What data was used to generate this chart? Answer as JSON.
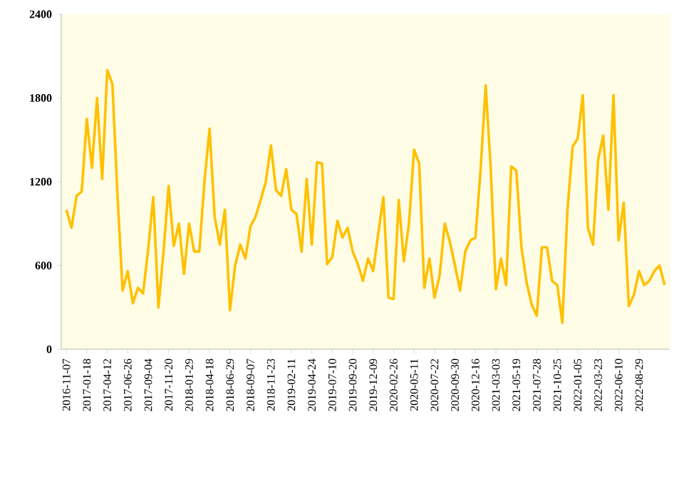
{
  "chart_data": {
    "type": "line",
    "categories": [
      "2016-11-07",
      null,
      null,
      null,
      "2017-01-18",
      null,
      null,
      null,
      "2017-04-12",
      null,
      null,
      null,
      "2017-06-26",
      null,
      null,
      null,
      "2017-09-04",
      null,
      null,
      null,
      "2017-11-20",
      null,
      null,
      null,
      "2018-01-29",
      null,
      null,
      null,
      "2018-04-18",
      null,
      null,
      null,
      "2018-06-29",
      null,
      null,
      null,
      "2018-09-07",
      null,
      null,
      null,
      "2018-11-23",
      null,
      null,
      null,
      "2019-02-11",
      null,
      null,
      null,
      "2019-04-24",
      null,
      null,
      null,
      "2019-07-10",
      null,
      null,
      null,
      "2019-09-20",
      null,
      null,
      null,
      "2019-12-09",
      null,
      null,
      null,
      "2020-02-26",
      null,
      null,
      null,
      "2020-05-11",
      null,
      null,
      null,
      "2020-07-22",
      null,
      null,
      null,
      "2020-09-30",
      null,
      null,
      null,
      "2020-12-16",
      null,
      null,
      null,
      "2021-03-03",
      null,
      null,
      null,
      "2021-05-19",
      null,
      null,
      null,
      "2021-07-28",
      null,
      null,
      null,
      "2021-10-25",
      null,
      null,
      null,
      "2022-01-05",
      null,
      null,
      null,
      "2022-03-23",
      null,
      null,
      null,
      "2022-06-10",
      null,
      null,
      null,
      "2022-08-29",
      null,
      null,
      null,
      null,
      null
    ],
    "series": [
      {
        "color": "#ffc000",
        "values": [
          1000,
          870,
          1100,
          1130,
          1650,
          1300,
          1800,
          1220,
          2000,
          1900,
          1100,
          420,
          560,
          330,
          440,
          400,
          720,
          1090,
          300,
          700,
          1170,
          740,
          900,
          540,
          900,
          700,
          700,
          1200,
          1580,
          950,
          750,
          1000,
          280,
          600,
          750,
          650,
          880,
          950,
          1070,
          1200,
          1460,
          1140,
          1100,
          1290,
          1000,
          970,
          700,
          1220,
          750,
          1340,
          1330,
          610,
          660,
          920,
          800,
          870,
          700,
          610,
          490,
          650,
          560,
          830,
          1090,
          370,
          360,
          1070,
          630,
          900,
          1430,
          1330,
          440,
          650,
          370,
          530,
          900,
          770,
          600,
          420,
          700,
          780,
          800,
          1280,
          1890,
          1290,
          430,
          650,
          460,
          1310,
          1280,
          730,
          480,
          320,
          240,
          730,
          730,
          490,
          460,
          190,
          1000,
          1450,
          1510,
          1820,
          870,
          750,
          1360,
          1530,
          1000,
          1820,
          780,
          1050,
          310,
          390,
          560,
          460,
          490,
          560,
          600,
          460
        ]
      }
    ],
    "ylim": [
      0,
      2400
    ],
    "yticks": [
      0,
      600,
      1200,
      1800,
      2400
    ]
  }
}
